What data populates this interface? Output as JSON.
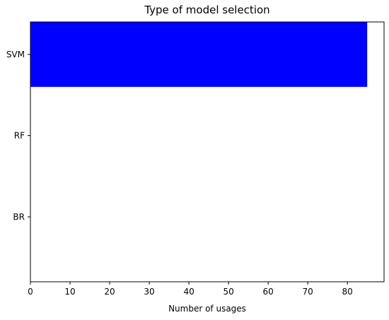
{
  "chart_data": {
    "type": "bar",
    "orientation": "horizontal",
    "title": "Type of model selection",
    "xlabel": "Number of usages",
    "ylabel": "",
    "categories": [
      "SVM",
      "RF",
      "BR"
    ],
    "values": [
      85,
      0,
      0
    ],
    "xlim": [
      0,
      89.25
    ],
    "xticks": [
      0,
      10,
      20,
      30,
      40,
      50,
      60,
      70,
      80
    ],
    "bar_color": "#0000ff",
    "grid": false,
    "legend": "none"
  }
}
